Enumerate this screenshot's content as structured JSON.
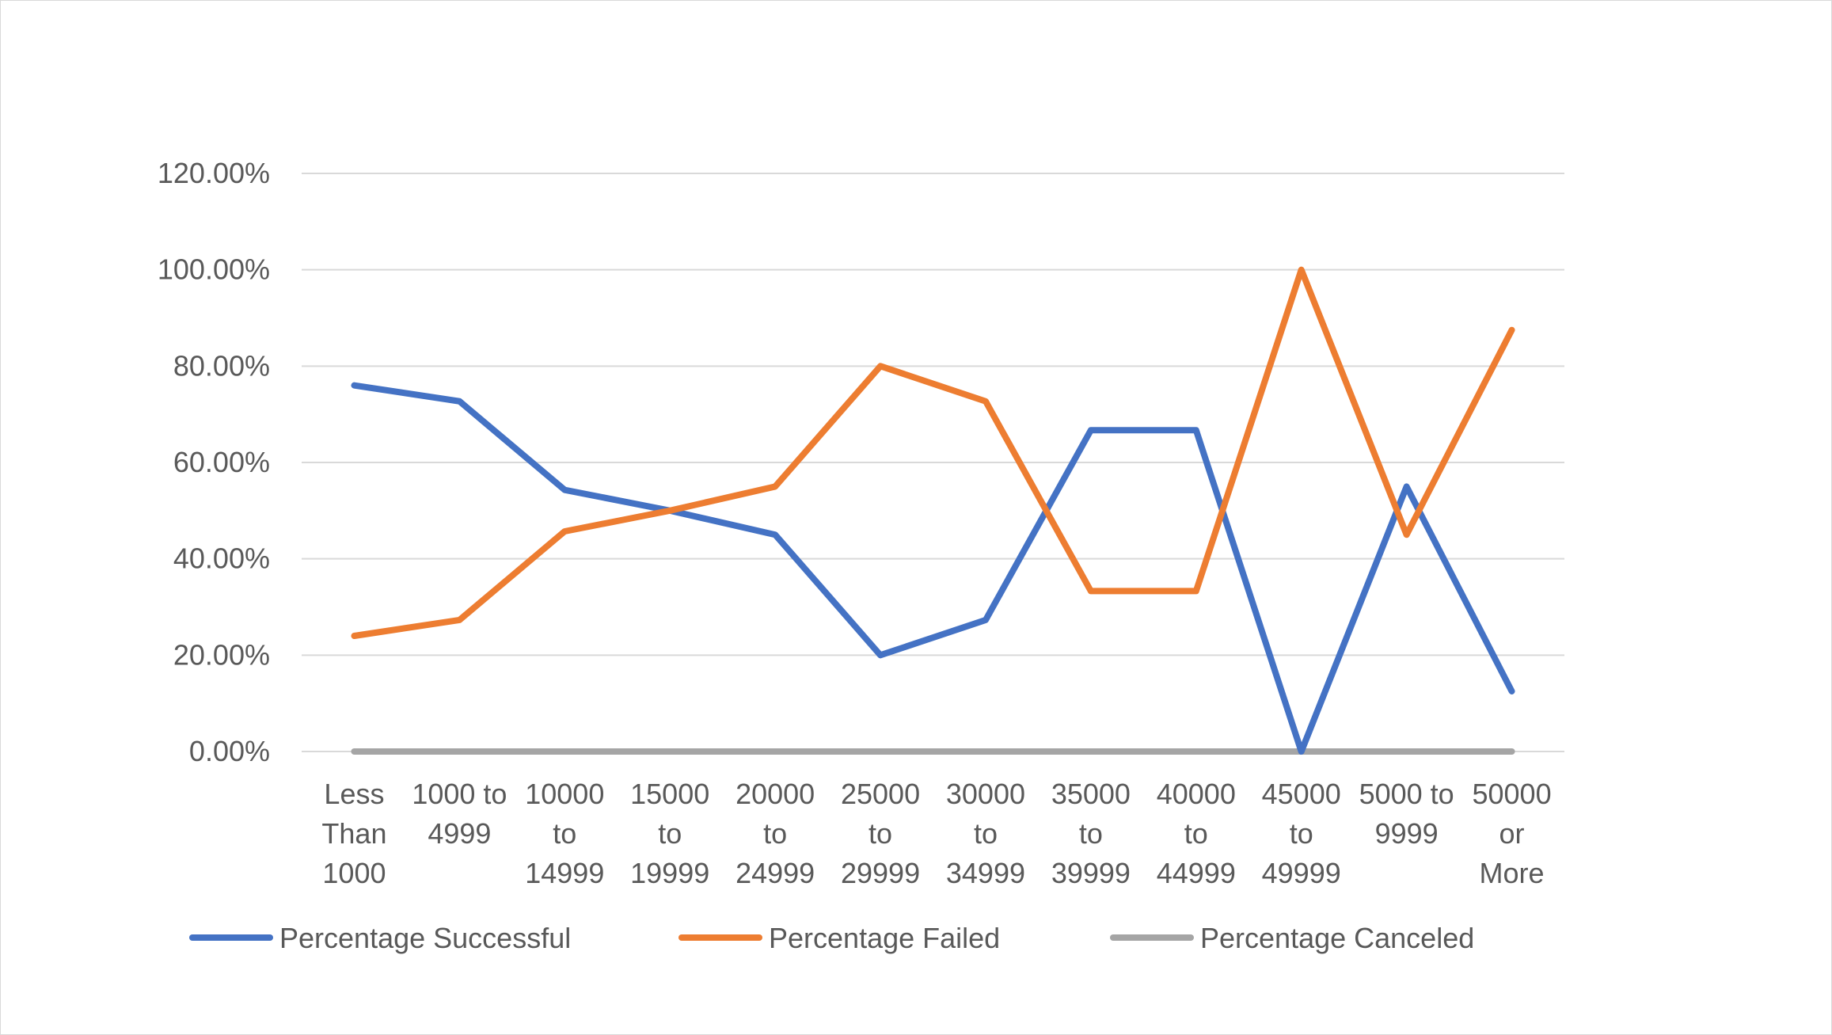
{
  "chart_data": {
    "type": "line",
    "title": "",
    "xlabel": "",
    "ylabel": "",
    "categories": [
      [
        "Less",
        "Than",
        "1000"
      ],
      [
        "1000 to",
        "4999"
      ],
      [
        "10000",
        "to",
        "14999"
      ],
      [
        "15000",
        "to",
        "19999"
      ],
      [
        "20000",
        "to",
        "24999"
      ],
      [
        "25000",
        "to",
        "29999"
      ],
      [
        "30000",
        "to",
        "34999"
      ],
      [
        "35000",
        "to",
        "39999"
      ],
      [
        "40000",
        "to",
        "44999"
      ],
      [
        "45000",
        "to",
        "49999"
      ],
      [
        "5000 to",
        "9999"
      ],
      [
        "50000",
        "or",
        "More"
      ]
    ],
    "series": [
      {
        "name": "Percentage Successful",
        "color": "#4472C4",
        "values": [
          0.76,
          0.727,
          0.543,
          0.5,
          0.45,
          0.2,
          0.273,
          0.667,
          0.667,
          0.0,
          0.55,
          0.125
        ]
      },
      {
        "name": "Percentage Failed",
        "color": "#ED7D31",
        "values": [
          0.24,
          0.273,
          0.457,
          0.5,
          0.55,
          0.8,
          0.727,
          0.333,
          0.333,
          1.0,
          0.45,
          0.875
        ]
      },
      {
        "name": "Percentage Canceled",
        "color": "#A5A5A5",
        "values": [
          0,
          0,
          0,
          0,
          0,
          0,
          0,
          0,
          0,
          0,
          0,
          0
        ]
      }
    ],
    "ylim": [
      0,
      1.2
    ],
    "yticks": [
      {
        "value": 0,
        "label": "0.00%"
      },
      {
        "value": 0.2,
        "label": "20.00%"
      },
      {
        "value": 0.4,
        "label": "40.00%"
      },
      {
        "value": 0.6,
        "label": "60.00%"
      },
      {
        "value": 0.8,
        "label": "80.00%"
      },
      {
        "value": 1.0,
        "label": "100.00%"
      },
      {
        "value": 1.2,
        "label": "120.00%"
      }
    ],
    "grid": true,
    "legend_position": "bottom",
    "gridline_color": "#d9d9d9",
    "text_color": "#595959"
  }
}
